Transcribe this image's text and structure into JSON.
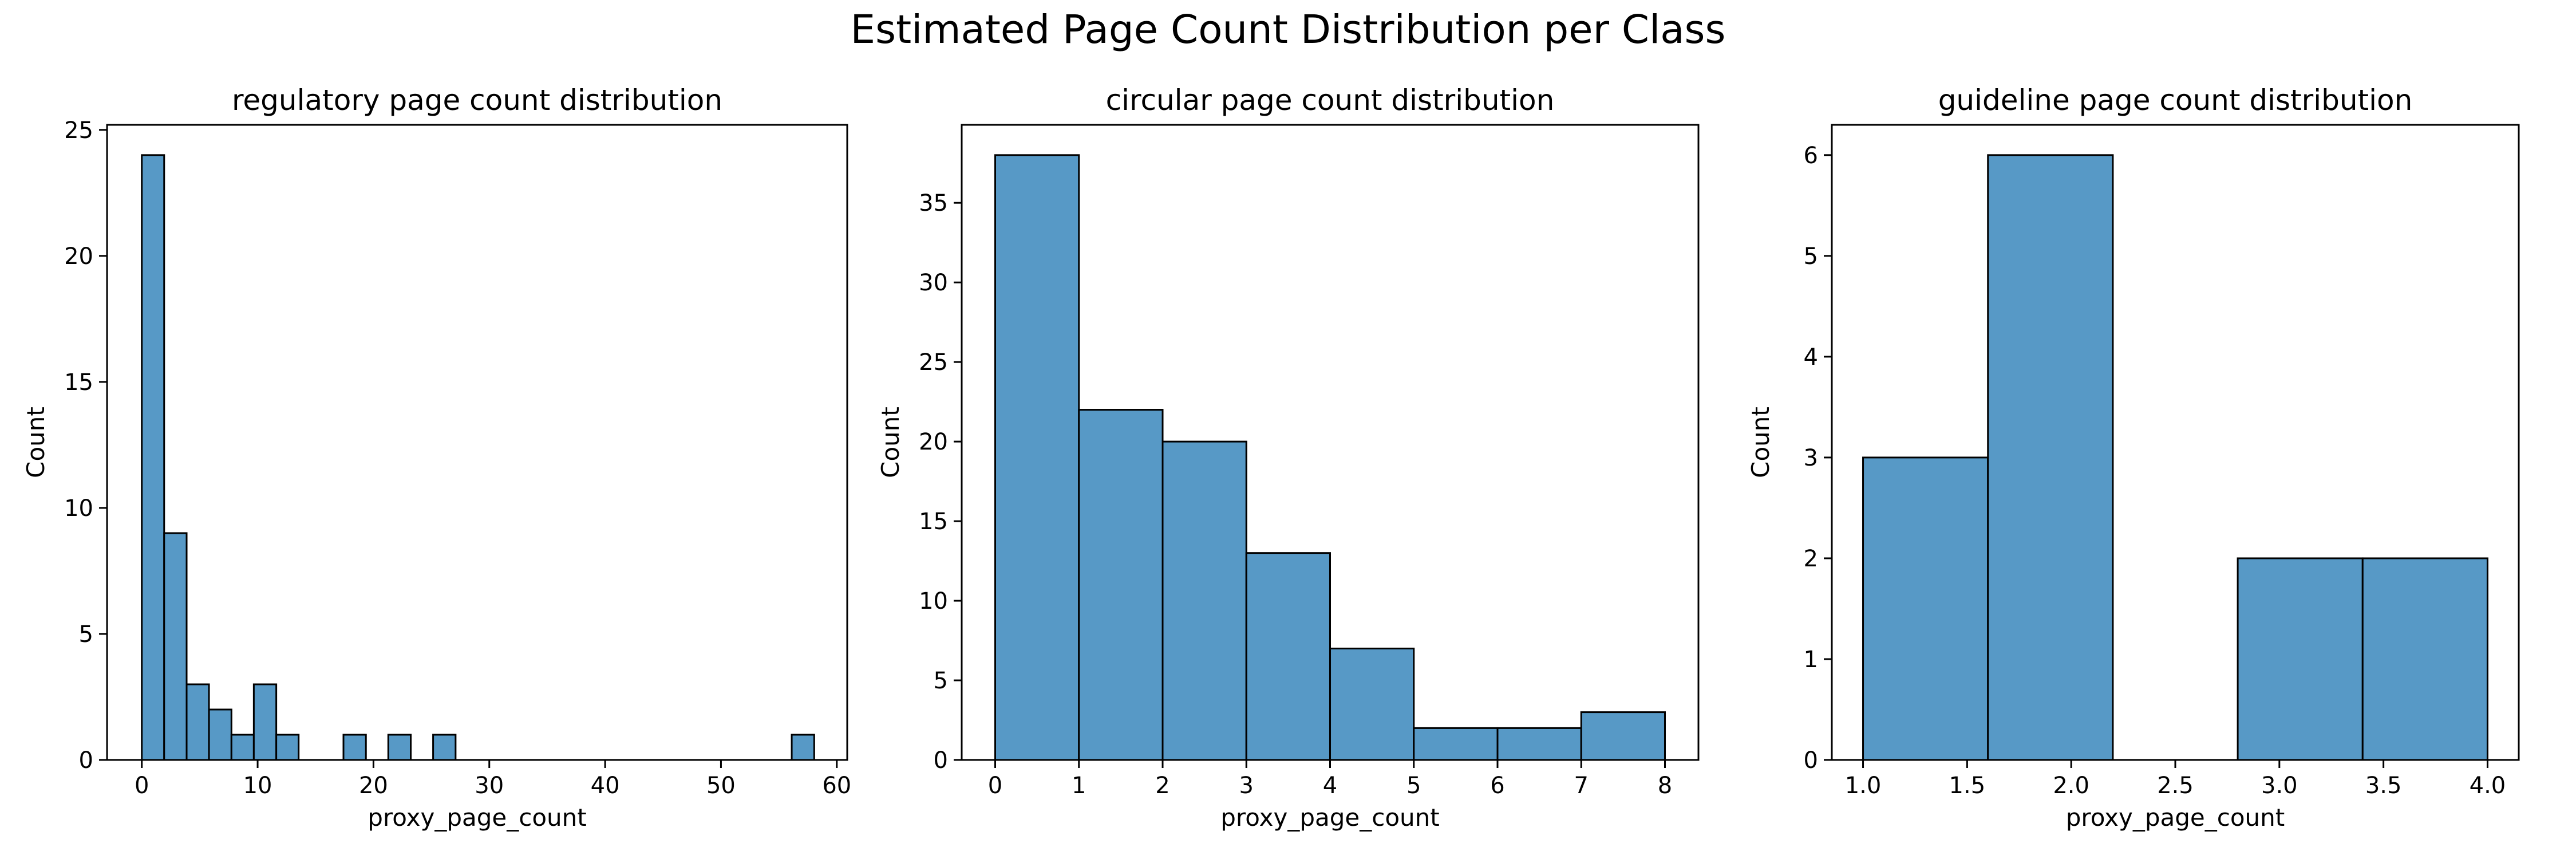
{
  "suptitle": "Estimated Page Count Distribution per Class",
  "chart_data": [
    {
      "type": "bar",
      "title": "regulatory page count distribution",
      "xlabel": "proxy_page_count",
      "ylabel": "Count",
      "xlim": [
        -3,
        60.9
      ],
      "ylim": [
        0,
        25.2
      ],
      "xticks": [
        0,
        10,
        20,
        30,
        40,
        50,
        60
      ],
      "yticks": [
        0,
        5,
        10,
        15,
        20,
        25
      ],
      "bin_edges": [
        0,
        1.93,
        3.87,
        5.8,
        7.74,
        9.67,
        11.61,
        13.54,
        15.48,
        17.41,
        19.35,
        21.28,
        23.22,
        25.15,
        27.09,
        29.02,
        30.96,
        32.89,
        34.83,
        36.76,
        38.7,
        40.63,
        42.57,
        44.5,
        46.44,
        48.37,
        50.31,
        52.24,
        54.18,
        56.11,
        58.05
      ],
      "counts": [
        24,
        9,
        3,
        2,
        1,
        3,
        1,
        0,
        0,
        1,
        0,
        1,
        0,
        1,
        0,
        0,
        0,
        0,
        0,
        0,
        0,
        0,
        0,
        0,
        0,
        0,
        0,
        0,
        0,
        1
      ]
    },
    {
      "type": "bar",
      "title": "circular page count distribution",
      "xlabel": "proxy_page_count",
      "ylabel": "Count",
      "xlim": [
        -0.4,
        8.4
      ],
      "ylim": [
        0,
        39.9
      ],
      "xticks": [
        0,
        1,
        2,
        3,
        4,
        5,
        6,
        7,
        8
      ],
      "yticks": [
        0,
        5,
        10,
        15,
        20,
        25,
        30,
        35
      ],
      "bin_edges": [
        0,
        1,
        2,
        3,
        4,
        5,
        6,
        7,
        8
      ],
      "counts": [
        38,
        22,
        20,
        13,
        7,
        2,
        2,
        3
      ]
    },
    {
      "type": "bar",
      "title": "guideline page count distribution",
      "xlabel": "proxy_page_count",
      "ylabel": "Count",
      "xlim": [
        0.85,
        4.15
      ],
      "ylim": [
        0,
        6.3
      ],
      "xticks": [
        1.0,
        1.5,
        2.0,
        2.5,
        3.0,
        3.5,
        4.0
      ],
      "xtick_labels": [
        "1.0",
        "1.5",
        "2.0",
        "2.5",
        "3.0",
        "3.5",
        "4.0"
      ],
      "yticks": [
        0,
        1,
        2,
        3,
        4,
        5,
        6
      ],
      "bin_edges": [
        1.0,
        1.6,
        2.2,
        2.8,
        3.4,
        4.0
      ],
      "counts": [
        3,
        6,
        0,
        2,
        2
      ]
    }
  ]
}
